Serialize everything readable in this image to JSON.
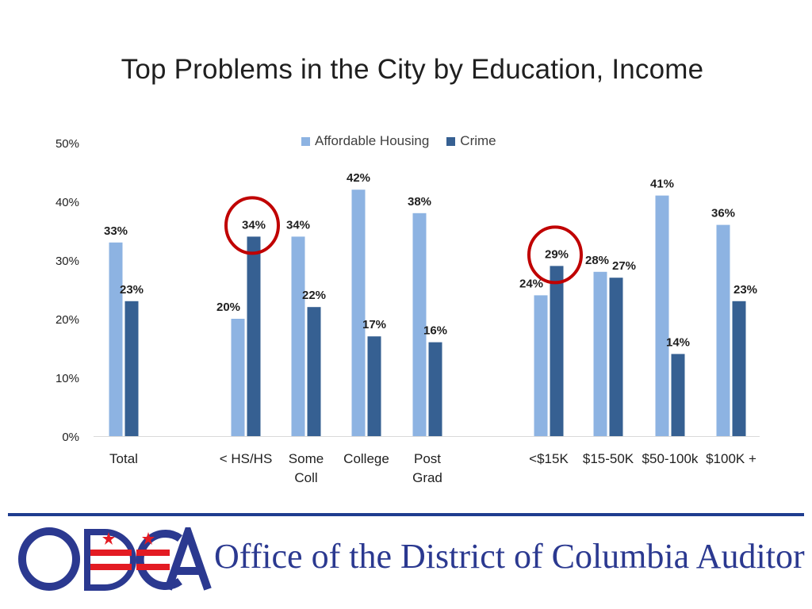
{
  "chart_data": {
    "type": "bar",
    "title": "Top Problems in the City by Education, Income",
    "xlabel": "",
    "ylabel": "",
    "ylim": [
      0,
      50
    ],
    "yticks": [
      "0%",
      "10%",
      "20%",
      "30%",
      "40%",
      "50%"
    ],
    "categories": [
      "Total",
      "< HS/HS",
      "Some Coll",
      "College",
      "Post Grad",
      "<$15K",
      "$15-50K",
      "$50-100k",
      "$100K +"
    ],
    "category_lines": [
      [
        "Total"
      ],
      [
        "< HS/HS"
      ],
      [
        "Some",
        "Coll"
      ],
      [
        "College"
      ],
      [
        "Post",
        "Grad"
      ],
      [
        "<$15K"
      ],
      [
        "$15-50K"
      ],
      [
        "$50-100k"
      ],
      [
        "$100K +"
      ]
    ],
    "series": [
      {
        "name": "Affordable Housing",
        "color": "#8db3e2",
        "values": [
          33,
          20,
          34,
          42,
          38,
          24,
          28,
          41,
          36
        ]
      },
      {
        "name": "Crime",
        "color": "#366092",
        "values": [
          23,
          34,
          22,
          17,
          16,
          29,
          27,
          14,
          23
        ]
      }
    ],
    "value_suffix": "%",
    "legend_position": "top-center",
    "grid": false,
    "highlighted": [
      {
        "series": "Crime",
        "category": "< HS/HS"
      },
      {
        "series": "Crime",
        "category": "<$15K"
      }
    ],
    "highlight_color": "#c00000"
  },
  "footer": {
    "org_name": "Office of the District of Columbia Auditor",
    "logo_text": "ODCA",
    "rule_color": "#1f3d8f",
    "logo_colors": {
      "blue": "#2b3990",
      "red": "#e31b23"
    }
  }
}
